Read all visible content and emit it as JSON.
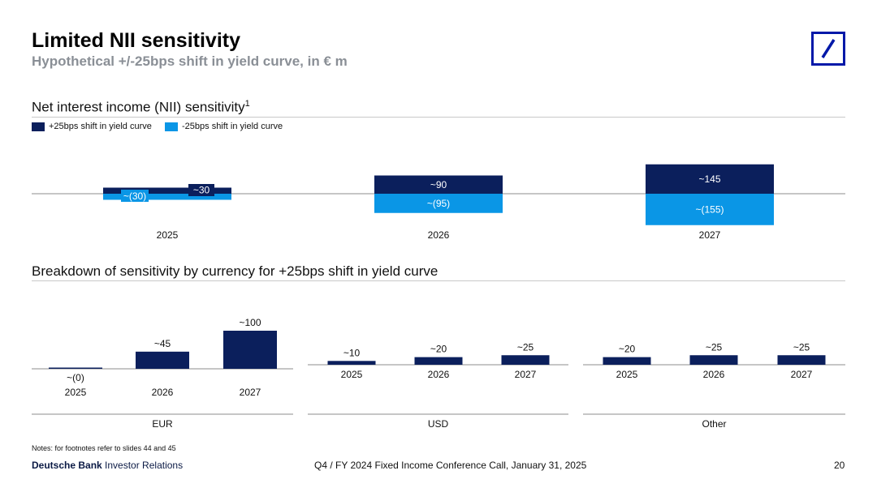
{
  "header": {
    "title": "Limited NII sensitivity",
    "subtitle": "Hypothetical +/-25bps shift in yield curve, in € m"
  },
  "sections": {
    "nii_title": "Net interest income (NII) sensitivity",
    "nii_footnote": "1",
    "breakdown_title": "Breakdown of sensitivity by currency for +25bps shift in yield curve"
  },
  "legend": {
    "up": "+25bps shift in yield curve",
    "down": "-25bps shift in yield curve"
  },
  "colors": {
    "up": "#0b1f5c",
    "down": "#0a96e6",
    "logo": "#0018a8"
  },
  "chart_data": [
    {
      "type": "bar",
      "title": "Net interest income (NII) sensitivity",
      "categories": [
        "2025",
        "2026",
        "2027"
      ],
      "series": [
        {
          "name": "+25bps shift in yield curve",
          "values": [
            30,
            90,
            145
          ],
          "labels": [
            "~30",
            "~90",
            "~145"
          ]
        },
        {
          "name": "-25bps shift in yield curve",
          "values": [
            -30,
            -95,
            -155
          ],
          "labels": [
            "~(30)",
            "~(95)",
            "~(155)"
          ]
        }
      ]
    },
    {
      "type": "bar",
      "title": "EUR",
      "categories": [
        "2025",
        "2026",
        "2027"
      ],
      "values": [
        0,
        45,
        100
      ],
      "labels": [
        "~(0)",
        "~45",
        "~100"
      ]
    },
    {
      "type": "bar",
      "title": "USD",
      "categories": [
        "2025",
        "2026",
        "2027"
      ],
      "values": [
        10,
        20,
        25
      ],
      "labels": [
        "~10",
        "~20",
        "~25"
      ]
    },
    {
      "type": "bar",
      "title": "Other",
      "categories": [
        "2025",
        "2026",
        "2027"
      ],
      "values": [
        20,
        25,
        25
      ],
      "labels": [
        "~20",
        "~25",
        "~25"
      ]
    }
  ],
  "footer": {
    "notes": "Notes: for footnotes refer to slides 44 and 45",
    "brand_bold": "Deutsche Bank",
    "brand_rest": " Investor Relations",
    "event": "Q4 / FY 2024 Fixed Income Conference Call, January 31, 2025",
    "page": "20"
  }
}
